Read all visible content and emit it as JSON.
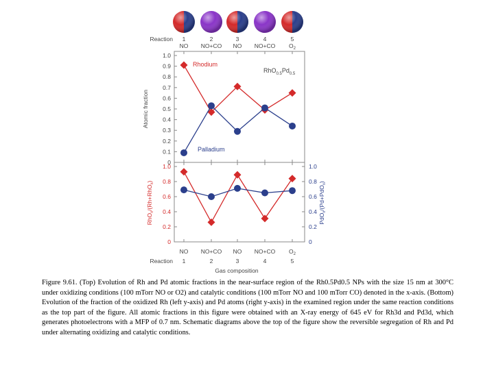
{
  "figure": {
    "reaction_row_label": "Reaction",
    "gas_composition_label": "Gas composition",
    "reactions": [
      {
        "number": "1",
        "gas": "NO",
        "icon": "split-sphere-icon"
      },
      {
        "number": "2",
        "gas": "NO+CO",
        "icon": "purple-sphere-icon"
      },
      {
        "number": "3",
        "gas": "NO",
        "icon": "split-sphere-icon"
      },
      {
        "number": "4",
        "gas": "NO+CO",
        "icon": "purple-sphere-icon"
      },
      {
        "number": "5",
        "gas": "O2",
        "icon": "split-sphere-icon"
      }
    ],
    "colors": {
      "rhodium": "#d42a2a",
      "palladium": "#2b3f8c",
      "axis": "#888888",
      "sphere_red": "#d42a2a",
      "sphere_blue": "#2b3f8c",
      "sphere_purple": "#8a35c8"
    }
  },
  "chart_data": [
    {
      "type": "line",
      "panel": "top",
      "ylabel": "Atomic fraction",
      "ylim": [
        0,
        1.0
      ],
      "yticks": [
        "0",
        "0.1",
        "0.2",
        "0.3",
        "0.4",
        "0.5",
        "0.6",
        "0.7",
        "0.8",
        "0.9",
        "1.0"
      ],
      "categories": [
        "1",
        "2",
        "3",
        "4",
        "5"
      ],
      "annotation": {
        "base": "RhO",
        "sub1": "0.5",
        "mid": "Pd",
        "sub2": "0.5"
      },
      "series": [
        {
          "name": "Rhodium",
          "marker": "diamond",
          "values": [
            0.91,
            0.47,
            0.71,
            0.49,
            0.65
          ]
        },
        {
          "name": "Palladium",
          "marker": "circle",
          "values": [
            0.09,
            0.53,
            0.29,
            0.51,
            0.34
          ]
        }
      ]
    },
    {
      "type": "line",
      "panel": "bottom",
      "ylabel_left": {
        "a": "RhO",
        "b": "/(Rh+RhO",
        "c": ")",
        "sub": "x"
      },
      "ylabel_right": {
        "a": "PdO",
        "b": "/(Pd+PdO",
        "c": ")",
        "sub": "x"
      },
      "ylim": [
        0,
        1.0
      ],
      "yticks_left": [
        "0",
        "0.2",
        "0.4",
        "0.6",
        "0.8",
        "1.0"
      ],
      "yticks_right": [
        "0",
        "0.2",
        "0.4",
        "0.6",
        "0.8",
        "1.0"
      ],
      "categories": [
        "1",
        "2",
        "3",
        "4",
        "5"
      ],
      "xticks": [
        "NO",
        "NO+CO",
        "NO",
        "NO+CO",
        "O2"
      ],
      "series": [
        {
          "name": "RhOx/(Rh+RhOx)",
          "axis": "left",
          "marker": "diamond",
          "values": [
            0.93,
            0.26,
            0.89,
            0.31,
            0.84
          ]
        },
        {
          "name": "PdOx/(Pd+PdOx)",
          "axis": "right",
          "marker": "circle",
          "values": [
            0.69,
            0.6,
            0.71,
            0.65,
            0.68
          ]
        }
      ]
    }
  ],
  "caption": "Figure 9.61. (Top) Evolution of Rh and Pd atomic fractions in the near-surface region of the Rh0.5Pd0.5 NPs with the size 15 nm at 300°C under oxidizing conditions (100 mTorr NO or O2) and catalytic conditions (100 mTorr NO and 100 mTorr CO) denoted in the x-axis. (Bottom) Evolution of the fraction of the oxidized Rh (left y-axis) and Pd atoms (right y-axis) in the examined region under the same reaction conditions as the top part of the figure. All atomic fractions in this figure were obtained with an X-ray energy of 645 eV for Rh3d and Pd3d, which generates photoelectrons with a MFP of 0.7 nm. Schematic diagrams above the top of the figure show the reversible segregation of Rh and Pd under alternating oxidizing and catalytic conditions."
}
